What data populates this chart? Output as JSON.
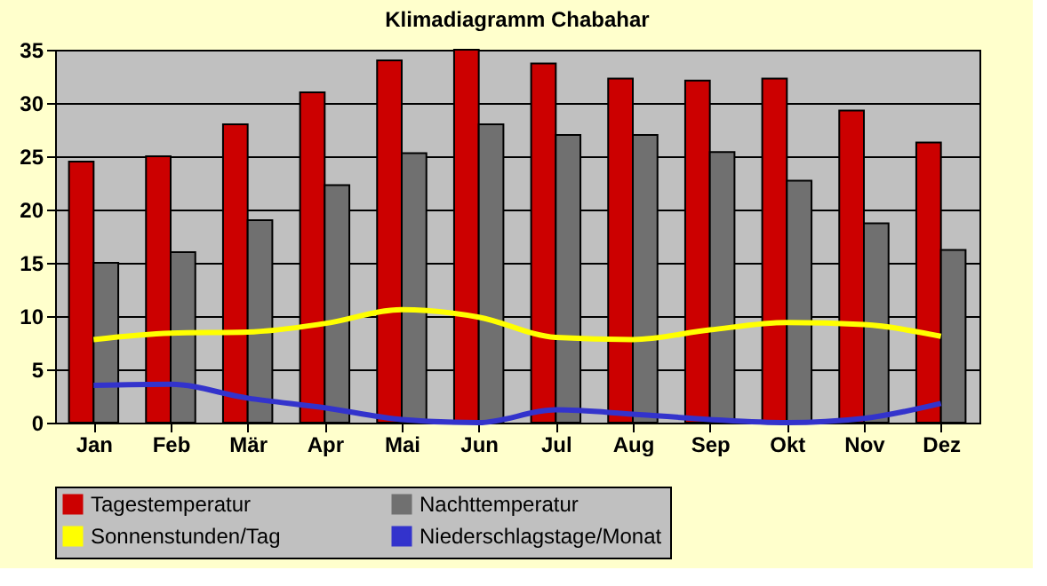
{
  "chart_data": {
    "type": "bar",
    "title": "Klimadiagramm Chabahar",
    "categories": [
      "Jan",
      "Feb",
      "Mär",
      "Apr",
      "Mai",
      "Jun",
      "Jul",
      "Aug",
      "Sep",
      "Okt",
      "Nov",
      "Dez"
    ],
    "series": [
      {
        "name": "Tagestemperatur",
        "color": "#cc0000",
        "values": [
          24.5,
          25,
          28,
          31,
          34,
          35,
          33.7,
          32.3,
          32.1,
          32.3,
          29.3,
          26.3
        ]
      },
      {
        "name": "Nachttemperatur",
        "color": "#707070",
        "values": [
          15,
          16,
          19,
          22.3,
          25.3,
          28,
          27,
          27,
          25.4,
          22.7,
          18.7,
          16.2
        ]
      },
      {
        "name": "Sonnenstunden/Tag",
        "type": "line",
        "color": "#ffff00",
        "values": [
          7.8,
          8.4,
          8.5,
          9.3,
          10.6,
          9.9,
          8.0,
          7.8,
          8.7,
          9.4,
          9.2,
          8.1
        ]
      },
      {
        "name": "Niederschlagstage/Monat",
        "type": "line",
        "color": "#3333cc",
        "values": [
          3.5,
          3.6,
          2.3,
          1.4,
          0.3,
          0,
          1.2,
          0.8,
          0.3,
          0,
          0.4,
          1.8
        ]
      }
    ],
    "ylim": [
      0,
      35
    ],
    "yticks": [
      0,
      5,
      10,
      15,
      20,
      25,
      30,
      35
    ],
    "grid": "y",
    "legend": "bottom",
    "line_style": "solid",
    "marker": "none"
  }
}
